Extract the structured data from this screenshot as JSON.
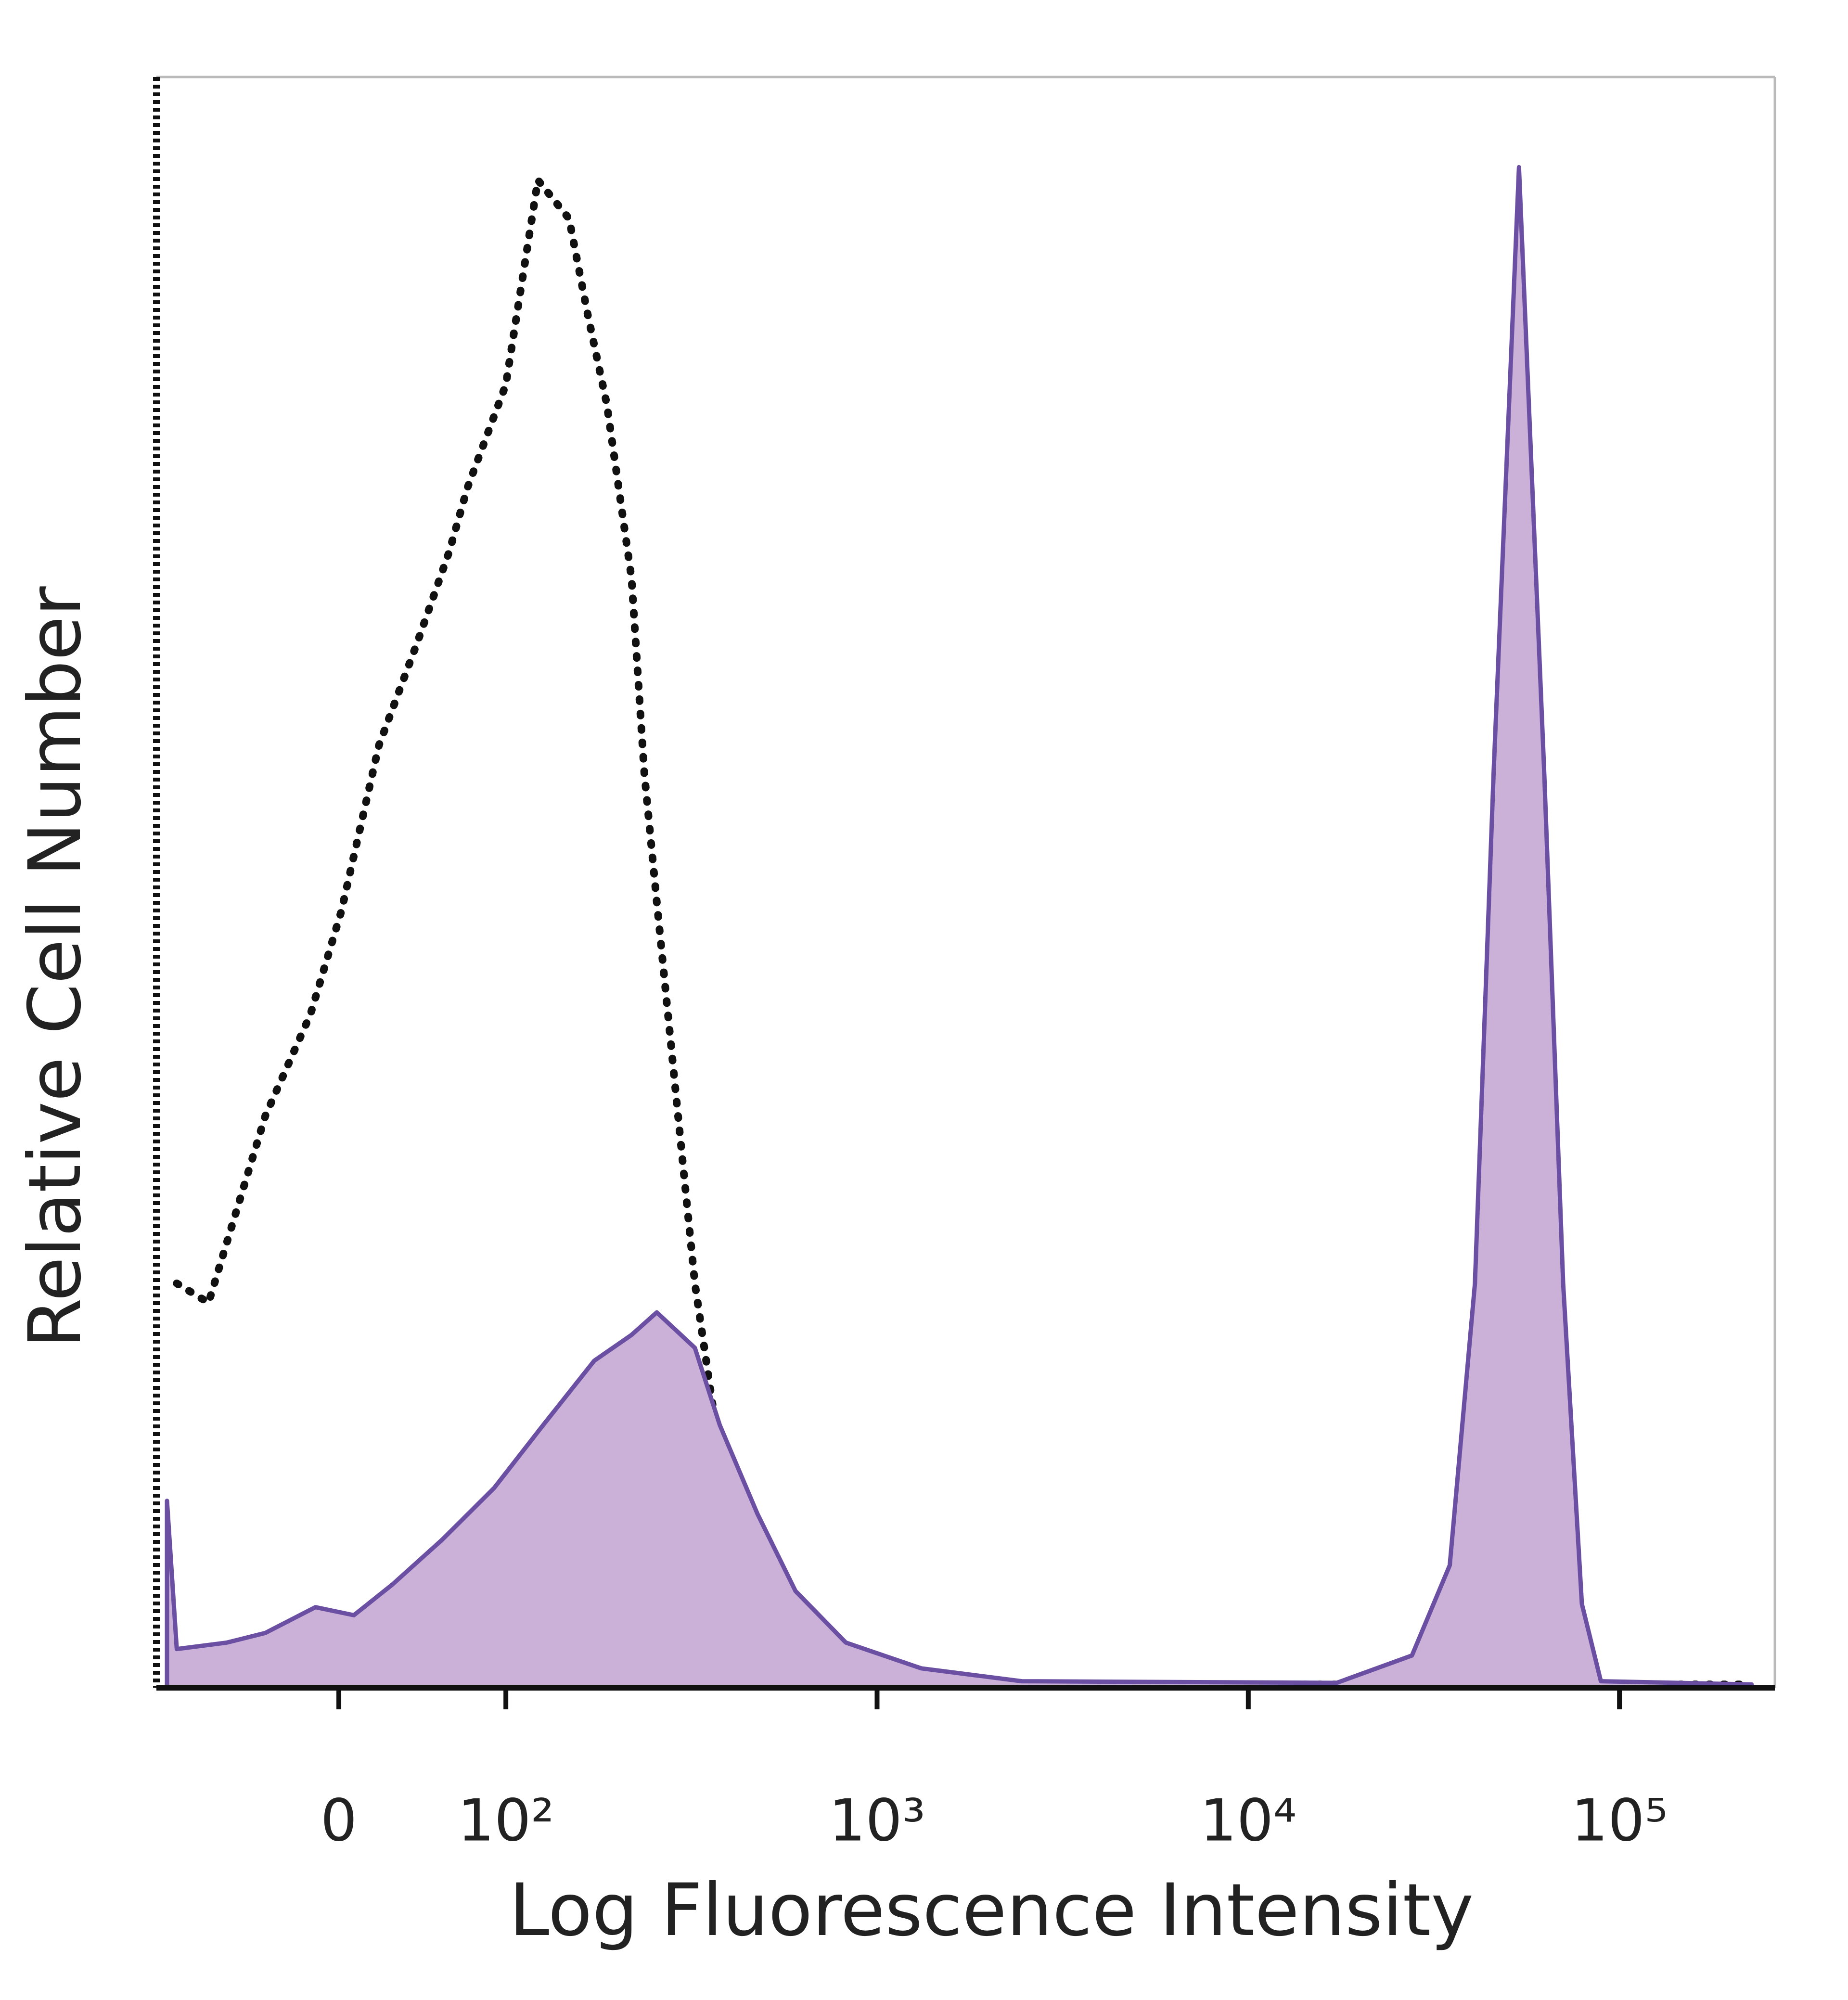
{
  "chart_data": {
    "type": "histogram-overlay",
    "x_label": "Log Fluorescence Intensity",
    "y_label": "Relative Cell Number",
    "xscale": "symlog",
    "linthresh": 100,
    "linscale": 0.45,
    "xlim": [
      -110,
      262144
    ],
    "ylim": [
      0,
      100
    ],
    "xticks": [
      0,
      {
        "value": 100,
        "label": "10²"
      },
      {
        "value": 1000,
        "label": "10³"
      },
      {
        "value": 10000,
        "label": "10⁴"
      },
      {
        "value": 100000,
        "label": "10⁵"
      }
    ],
    "series": [
      {
        "color": "#111111",
        "style": "dotted",
        "x": [
          -97,
          -78,
          -44,
          -17,
          1.5,
          24,
          47,
          66,
          77,
          100,
          122,
          148,
          166,
          187,
          218,
          236,
          255,
          287,
          323,
          363,
          425,
          515,
          705,
          2455,
          227000
        ],
        "values": [
          25.1,
          23.9,
          35.5,
          41.8,
          48.2,
          58.5,
          64.9,
          70.5,
          74.5,
          80.9,
          93.6,
          91.2,
          85.3,
          79.7,
          68.9,
          56.8,
          48.8,
          36.9,
          25.1,
          17.1,
          7.6,
          1.2,
          0.4,
          0.2,
          0.2
        ]
      },
      {
        "color": "#6a4fa3",
        "fill": "#cbb0d8",
        "style": "filled",
        "x": [
          -103,
          -97,
          -67,
          -44,
          -14,
          9,
          32,
          62,
          93,
          126,
          173,
          218,
          255,
          323,
          377,
          476,
          603,
          824,
          1315,
          2455,
          17300,
          27600,
          34900,
          40800,
          45800,
          53600,
          62700,
          70500,
          79200,
          89100,
          227000
        ],
        "values": [
          11.6,
          2.4,
          2.8,
          3.4,
          5.0,
          4.5,
          6.4,
          9.2,
          12.4,
          16.3,
          20.3,
          21.9,
          23.3,
          21.1,
          16.3,
          10.8,
          6.0,
          2.8,
          1.2,
          0.4,
          0.3,
          2.0,
          7.6,
          25.1,
          56.8,
          94.4,
          56.8,
          25.1,
          5.2,
          0.4,
          0.2
        ]
      }
    ]
  }
}
